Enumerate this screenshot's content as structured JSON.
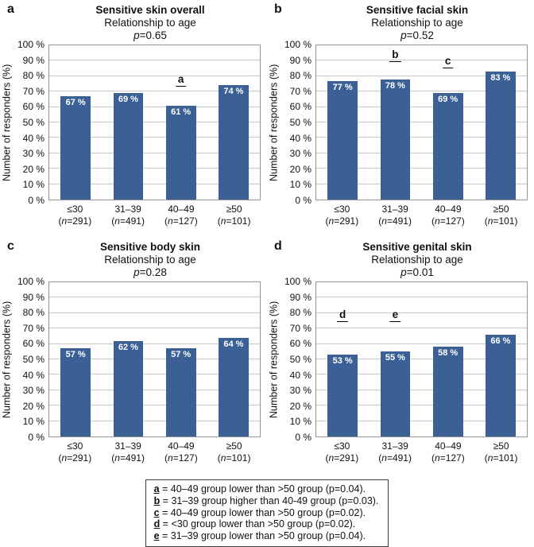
{
  "figure": {
    "y_axis_label": "Number of responders (%)",
    "ytick_labels": [
      "0 %",
      "10 %",
      "20 %",
      "30 %",
      "40 %",
      "50 %",
      "60 %",
      "70 %",
      "80 %",
      "90 %",
      "100 %"
    ],
    "categories": [
      {
        "range": "≤30",
        "n": "291"
      },
      {
        "range": "31–39",
        "n": "491"
      },
      {
        "range": "40–49",
        "n": "127"
      },
      {
        "range": "≥50",
        "n": "101"
      }
    ]
  },
  "chart_data": [
    {
      "type": "bar",
      "panel_label": "a",
      "title": "Sensitive skin overall",
      "subtitle": "Relationship to age",
      "p_italic": "p",
      "p_rest": "=0.65",
      "categories": [
        "≤30 (n=291)",
        "31–39 (n=491)",
        "40–49 (n=127)",
        "≥50 (n=101)"
      ],
      "values": [
        67,
        69,
        61,
        74
      ],
      "value_labels": [
        "67 %",
        "69 %",
        "61 %",
        "74 %"
      ],
      "xlabel": "",
      "ylabel": "Number of responders (%)",
      "ylim": [
        0,
        100
      ],
      "ytick_step": 10,
      "grid": true,
      "annotations": [
        {
          "label": "a",
          "slot": 2,
          "pct": 73
        }
      ]
    },
    {
      "type": "bar",
      "panel_label": "b",
      "title": "Sensitive facial skin",
      "subtitle": "Relationship to age",
      "p_italic": "p",
      "p_rest": "=0.52",
      "categories": [
        "≤30 (n=291)",
        "31–39 (n=491)",
        "40–49 (n=127)",
        "≥50 (n=101)"
      ],
      "values": [
        77,
        78,
        69,
        83
      ],
      "value_labels": [
        "77 %",
        "78 %",
        "69 %",
        "83 %"
      ],
      "xlabel": "",
      "ylabel": "Number of responders (%)",
      "ylim": [
        0,
        100
      ],
      "ytick_step": 10,
      "grid": true,
      "annotations": [
        {
          "label": "b",
          "slot": 1,
          "pct": 89
        },
        {
          "label": "c",
          "slot": 2,
          "pct": 85
        }
      ]
    },
    {
      "type": "bar",
      "panel_label": "c",
      "title": "Sensitive body skin",
      "subtitle": "Relationship to age",
      "p_italic": "p",
      "p_rest": "=0.28",
      "categories": [
        "≤30 (n=291)",
        "31–39 (n=491)",
        "40–49 (n=127)",
        "≥50 (n=101)"
      ],
      "values": [
        57,
        62,
        57,
        64
      ],
      "value_labels": [
        "57 %",
        "62 %",
        "57 %",
        "64 %"
      ],
      "xlabel": "",
      "ylabel": "Number of responders (%)",
      "ylim": [
        0,
        100
      ],
      "ytick_step": 10,
      "grid": true,
      "annotations": []
    },
    {
      "type": "bar",
      "panel_label": "d",
      "title": "Sensitive genital skin",
      "subtitle": "Relationship to age",
      "p_italic": "p",
      "p_rest": "=0.01",
      "categories": [
        "≤30 (n=291)",
        "31–39 (n=491)",
        "40–49 (n=127)",
        "≥50 (n=101)"
      ],
      "values": [
        53,
        55,
        58,
        66
      ],
      "value_labels": [
        "53 %",
        "55 %",
        "58 %",
        "66 %"
      ],
      "xlabel": "",
      "ylabel": "Number of responders (%)",
      "ylim": [
        0,
        100
      ],
      "ytick_step": 10,
      "grid": true,
      "annotations": [
        {
          "label": "d",
          "slot": 0,
          "pct": 74
        },
        {
          "label": "e",
          "slot": 1,
          "pct": 74
        }
      ]
    }
  ],
  "legend": {
    "items": [
      {
        "key": "a",
        "text": " = 40–49 group lower than >50 group (p=0.04)."
      },
      {
        "key": "b",
        "text": " = 31–39 group higher than 40-49 group (p=0.03)."
      },
      {
        "key": "c",
        "text": " = 40–49 group lower than >50 group (p=0.02)."
      },
      {
        "key": "d",
        "text": " = <30 group lower than >50 group (p=0.02)."
      },
      {
        "key": "e",
        "text": " = 31–39 group lower than >50 group (p=0.04)."
      }
    ]
  },
  "colors": {
    "bar": "#3a6096",
    "gridline": "#c9c9c9",
    "plot_border": "#949494"
  }
}
